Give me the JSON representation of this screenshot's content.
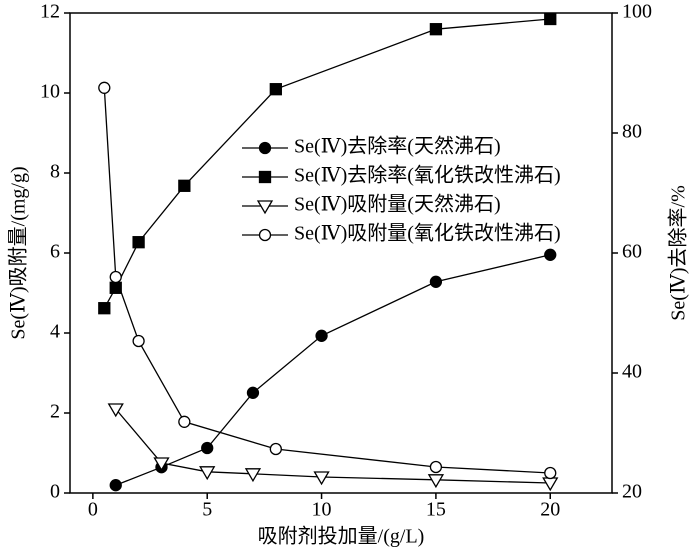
{
  "chart_data": {
    "type": "line",
    "x_label": "吸附剂投加量/(g/L)",
    "y_label": "Se(Ⅳ)吸附量/(mg/g)",
    "y2_label": "Se(Ⅳ)去除率/%",
    "xlim": [
      -1,
      22.7
    ],
    "xticks": [
      0,
      5,
      10,
      15,
      20
    ],
    "ylim": [
      0,
      12
    ],
    "yticks": [
      0,
      2,
      4,
      6,
      8,
      10,
      12
    ],
    "y2lim": [
      20,
      100
    ],
    "y2ticks": [
      20,
      40,
      60,
      80,
      100
    ],
    "series": [
      {
        "name": "Se(Ⅳ)去除率(天然沸石)",
        "color": "#000000",
        "marker": "circle",
        "filled": true,
        "axis": "y2",
        "x": [
          1,
          3,
          5,
          7,
          10,
          15,
          20
        ],
        "values": [
          21.3,
          24.3,
          27.5,
          36.7,
          46.2,
          55.2,
          59.7
        ]
      },
      {
        "name": "Se(Ⅳ)去除率(氧化铁改性沸石)",
        "color": "#000000",
        "marker": "square",
        "filled": true,
        "axis": "y2",
        "x": [
          0.5,
          1,
          2,
          4,
          8,
          15,
          20
        ],
        "values": [
          50.8,
          54.2,
          61.8,
          71.2,
          87.3,
          97.3,
          99.0
        ]
      },
      {
        "name": "Se(Ⅳ)吸附量(天然沸石)",
        "color": "#000000",
        "marker": "triangle-down",
        "filled": false,
        "axis": "y",
        "x": [
          1,
          3,
          5,
          7,
          10,
          15,
          20
        ],
        "values": [
          2.1,
          0.75,
          0.53,
          0.48,
          0.4,
          0.33,
          0.25
        ]
      },
      {
        "name": "Se(Ⅳ)吸附量(氧化铁改性沸石)",
        "color": "#000000",
        "marker": "circle",
        "filled": false,
        "axis": "y",
        "x": [
          0.5,
          1,
          2,
          4,
          8,
          15,
          20
        ],
        "values": [
          10.13,
          5.4,
          3.8,
          1.78,
          1.1,
          0.65,
          0.5
        ]
      }
    ]
  }
}
